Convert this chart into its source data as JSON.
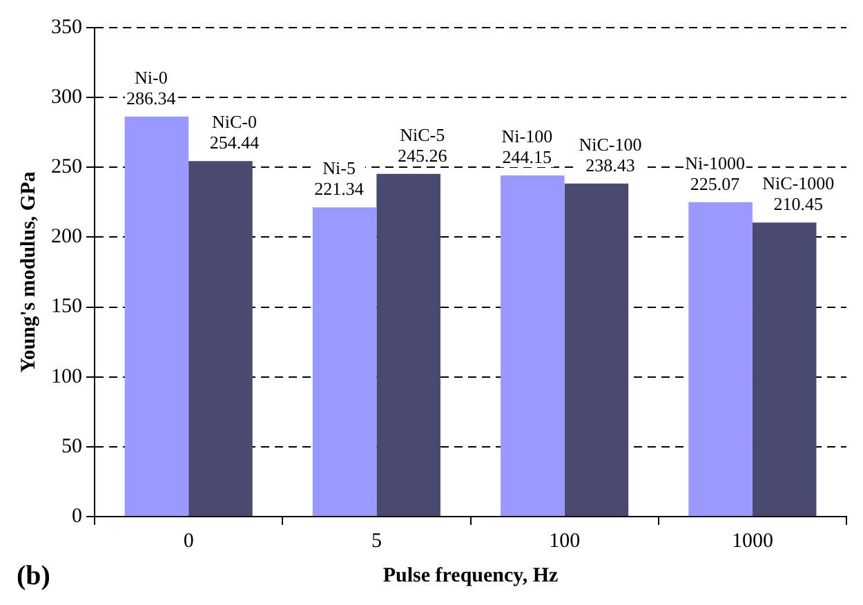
{
  "chart_data": {
    "type": "bar",
    "xlabel": "Pulse frequency, Hz",
    "ylabel": "Young's modulus, GPa",
    "categories": [
      "0",
      "5",
      "100",
      "1000"
    ],
    "series": [
      {
        "color": "#9999ff",
        "values": [
          286.34,
          221.34,
          244.15,
          225.07
        ],
        "value_labels": [
          "Ni-0\n286.34",
          "Ni-5\n221.34",
          "Ni-100\n244.15",
          "Ni-1000\n225.07"
        ]
      },
      {
        "color": "#4a4a70",
        "values": [
          254.44,
          245.26,
          238.43,
          210.45
        ],
        "value_labels": [
          "NiC-0\n254.44",
          "NiC-5\n245.26",
          "NiC-100\n238.43",
          "NiC-1000\n210.45"
        ]
      }
    ],
    "ylim": [
      0,
      350
    ],
    "yticks": [
      0,
      50,
      100,
      150,
      200,
      250,
      300,
      350
    ],
    "grid": "y",
    "legend": false,
    "annotations": [
      "(b)"
    ]
  }
}
